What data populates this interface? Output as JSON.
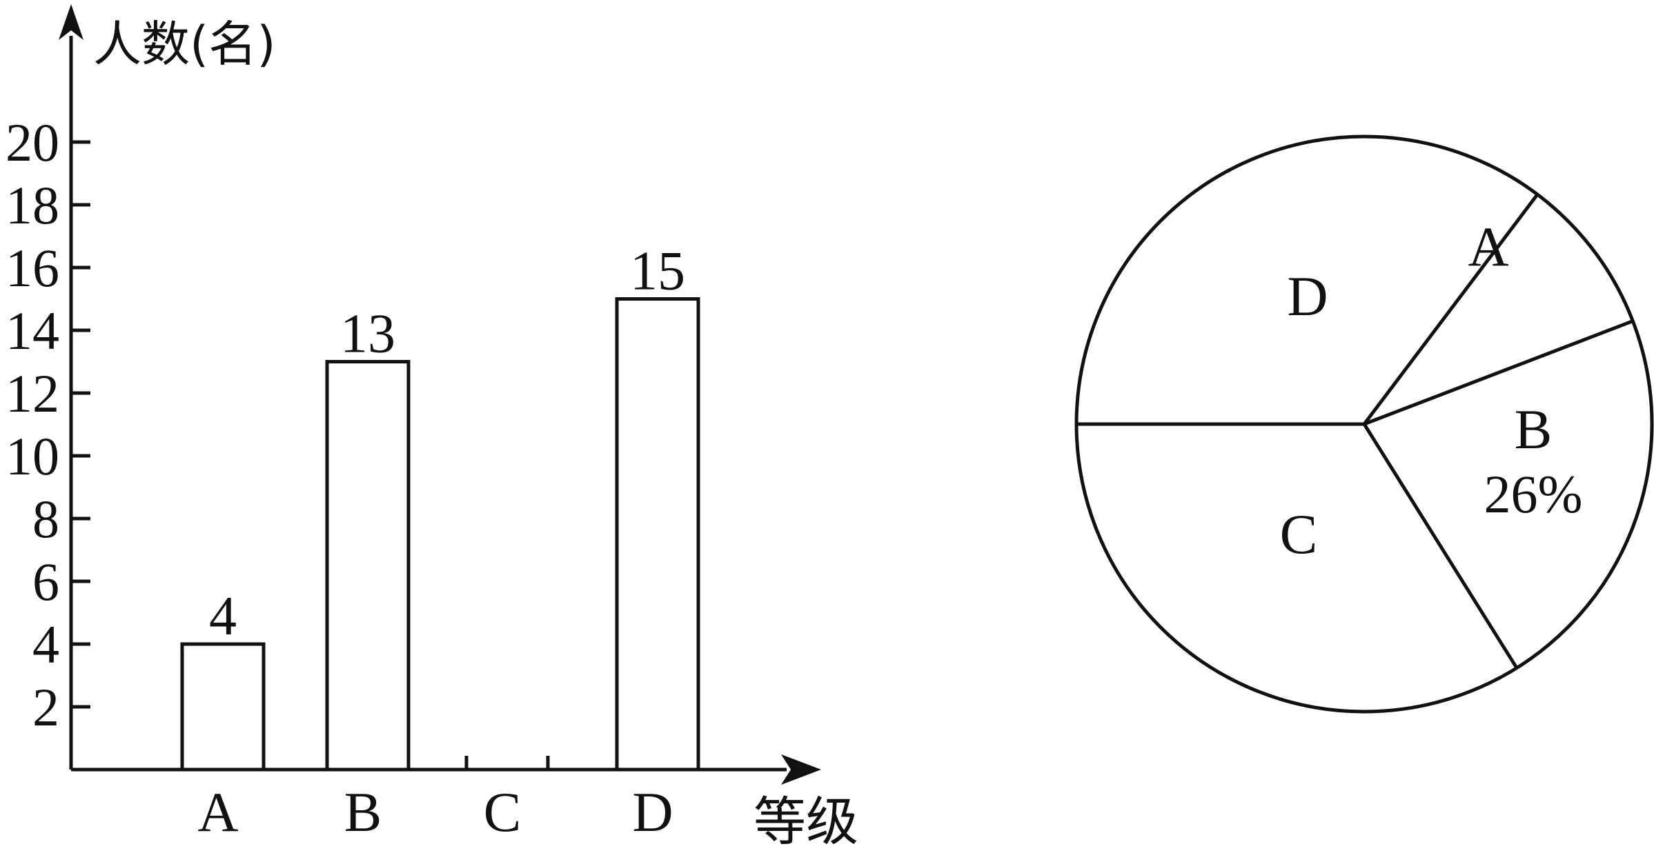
{
  "chart_data": [
    {
      "type": "bar",
      "ylabel": "人数(名)",
      "xlabel": "等级",
      "categories": [
        "A",
        "B",
        "C",
        "D"
      ],
      "values": [
        4,
        13,
        null,
        15
      ],
      "value_labels": [
        "4",
        "13",
        "",
        "15"
      ],
      "yticks": [
        2,
        4,
        6,
        8,
        10,
        12,
        14,
        16,
        18,
        20
      ],
      "ylim": [
        0,
        20
      ],
      "grid": false
    },
    {
      "type": "pie",
      "slices": [
        {
          "label": "A",
          "percent_label": ""
        },
        {
          "label": "B",
          "percent_label": "26%",
          "percent": 26
        },
        {
          "label": "C",
          "percent_label": ""
        },
        {
          "label": "D",
          "percent_label": ""
        }
      ],
      "boundary_angles_deg": [
        21,
        53,
        -58,
        180
      ]
    }
  ]
}
